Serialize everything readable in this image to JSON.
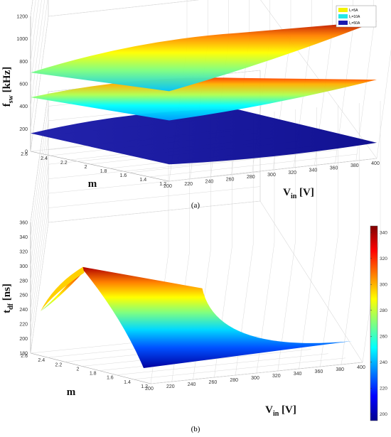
{
  "chart_data": [
    {
      "type": "surface",
      "caption": "(a)",
      "zlabel_main": "f",
      "zlabel_sub": "sw",
      "zlabel_unit": "[kHz]",
      "xlabel_main": "V",
      "xlabel_sub": "in",
      "xlabel_unit": "[V]",
      "ylabel": "m",
      "zlim": [
        0,
        1200
      ],
      "z_ticks": [
        "0",
        "200",
        "400",
        "600",
        "800",
        "1000",
        "1200"
      ],
      "x_ticks": [
        "200",
        "220",
        "240",
        "260",
        "280",
        "300",
        "320",
        "340",
        "360",
        "380",
        "400"
      ],
      "y_ticks": [
        "1.2",
        "1.4",
        "1.6",
        "1.8",
        "2",
        "2.2",
        "2.4",
        "2.6"
      ],
      "grid": true,
      "legend_position": "top-right",
      "series": [
        {
          "name": "I₀=5A",
          "color": "#f2f200",
          "corners": {
            "vmin_mmax": 700,
            "vmin_mmin": 800,
            "vmax_mmax": 850,
            "vmax_mmin": 1220
          }
        },
        {
          "name": "I₀=10A",
          "color": "#22e8e8",
          "corners": {
            "vmin_mmax": 480,
            "vmin_mmin": 540,
            "vmax_mmax": 450,
            "vmax_mmin": 700
          }
        },
        {
          "name": "I₀=50A",
          "color": "#1a1ab0",
          "corners": {
            "vmin_mmax": 160,
            "vmin_mmin": 150,
            "vmax_mmax": 170,
            "vmax_mmin": 140
          }
        }
      ]
    },
    {
      "type": "surface",
      "caption": "(b)",
      "zlabel_main": "t",
      "zlabel_sub": "df",
      "zlabel_unit": "[ns]",
      "xlabel_main": "V",
      "xlabel_sub": "in",
      "xlabel_unit": "[V]",
      "ylabel": "m",
      "zlim": [
        180,
        360
      ],
      "z_ticks": [
        "180",
        "200",
        "220",
        "240",
        "260",
        "280",
        "300",
        "320",
        "340",
        "360"
      ],
      "x_ticks": [
        "200",
        "220",
        "240",
        "260",
        "280",
        "300",
        "320",
        "340",
        "360",
        "380",
        "400"
      ],
      "y_ticks": [
        "1.2",
        "1.4",
        "1.6",
        "1.8",
        "2",
        "2.2",
        "2.4",
        "2.6"
      ],
      "grid": true,
      "colorbar": {
        "range": [
          195,
          345
        ],
        "ticks": [
          "200",
          "220",
          "240",
          "260",
          "280",
          "300",
          "320",
          "340"
        ]
      },
      "surface_values": {
        "ridge_max": 345,
        "vmax_mmin": 195,
        "vmin_mmax": 255
      }
    }
  ]
}
